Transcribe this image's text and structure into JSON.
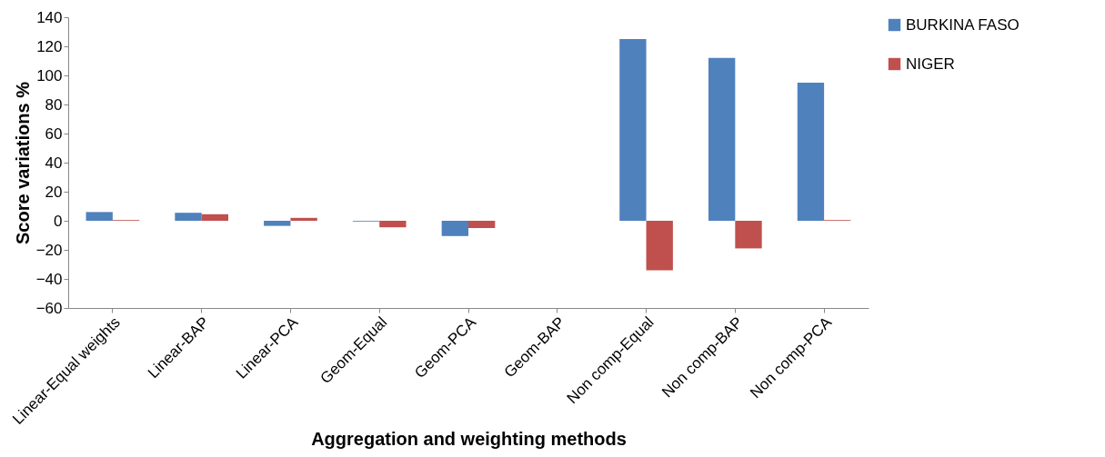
{
  "chart_data": {
    "type": "bar",
    "xlabel": "Aggregation and weighting methods",
    "ylabel": "Score  variations %",
    "categories": [
      "Linear-Equal weights",
      "Linear-BAP",
      "Linear-PCA",
      "Geom-Equal",
      "Geom-PCA",
      "Geom-BAP",
      "Non comp-Equal",
      "Non comp-BAP",
      "Non comp-PCA"
    ],
    "series": [
      {
        "name": "BURKINA FASO",
        "color": "#4f81bd",
        "values": [
          6,
          5.5,
          -3.5,
          -0.5,
          -10.5,
          0,
          125,
          112,
          95
        ]
      },
      {
        "name": "NIGER",
        "color": "#c0504d",
        "values": [
          0.5,
          4.5,
          2,
          -4.5,
          -5,
          0,
          -34,
          -19,
          0.5
        ]
      }
    ],
    "ylim": [
      -60,
      140
    ],
    "yticks": [
      -60,
      -40,
      -20,
      0,
      20,
      40,
      60,
      80,
      100,
      120,
      140
    ],
    "grid": false,
    "legend": "right"
  }
}
